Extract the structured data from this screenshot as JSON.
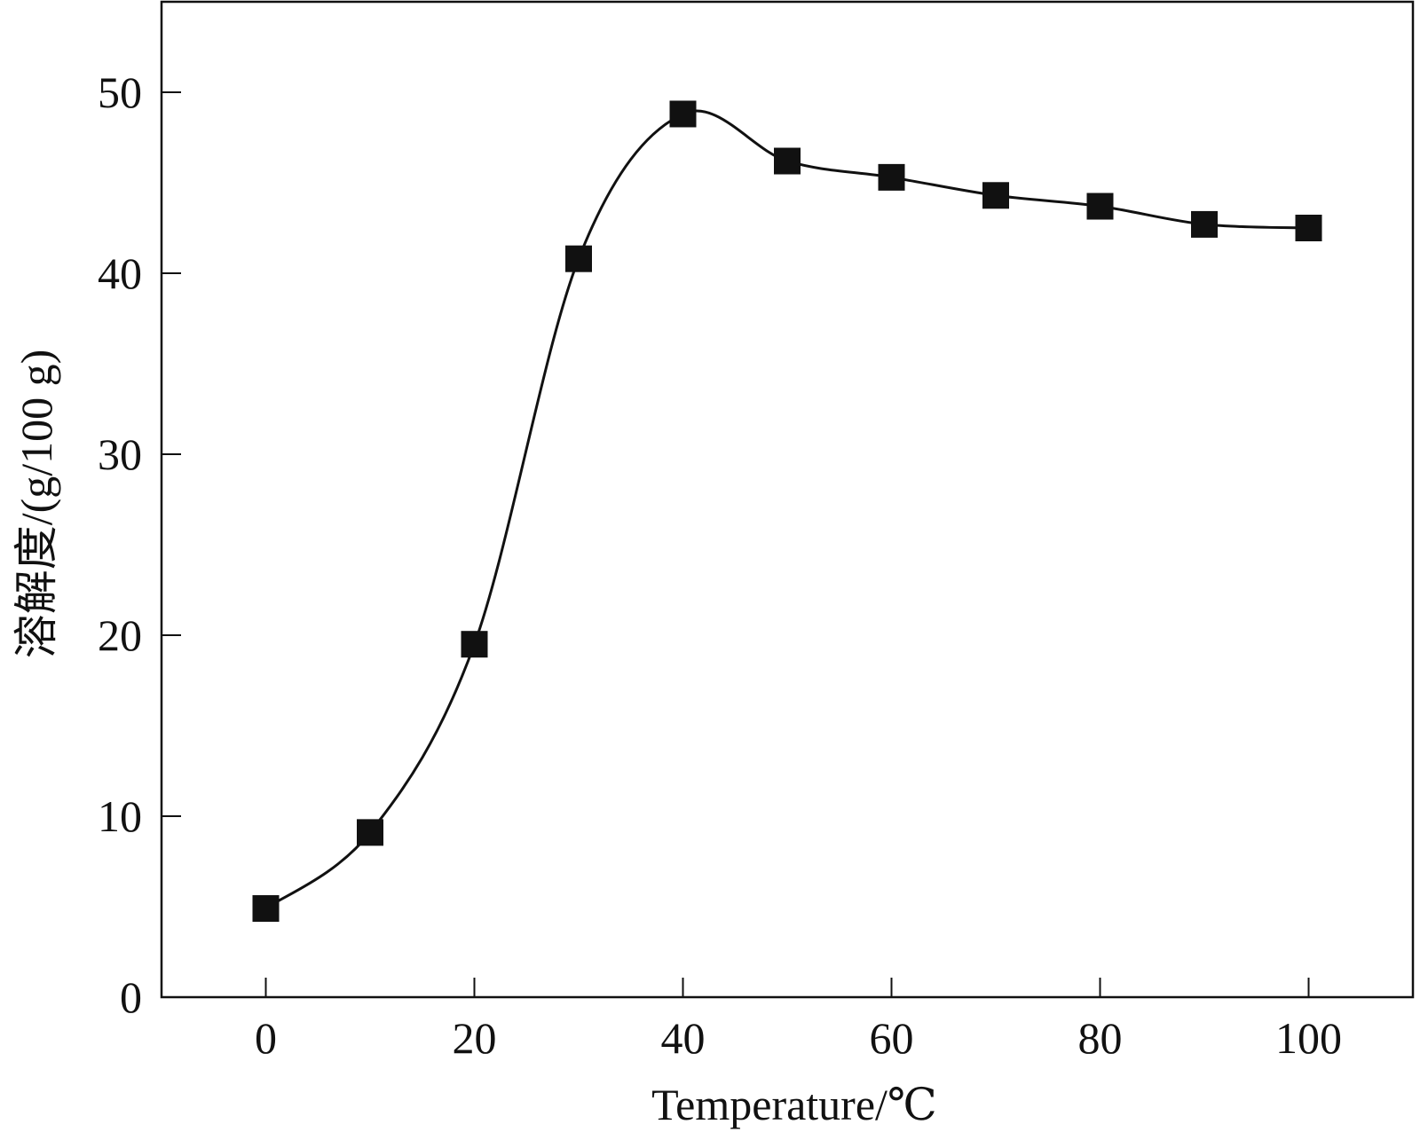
{
  "chart_data": {
    "type": "line",
    "title": "",
    "xlabel": "Temperature/℃",
    "ylabel": "溶解度/(g/100 g)",
    "xlim": [
      -10,
      110
    ],
    "ylim": [
      0,
      55
    ],
    "xticks": [
      0,
      20,
      40,
      60,
      80,
      100
    ],
    "yticks": [
      0,
      10,
      20,
      30,
      40,
      50
    ],
    "grid": false,
    "legend": "none",
    "marker": "square",
    "line_style": "smooth",
    "colors": {
      "line": "#111111",
      "marker": "#111111"
    },
    "series": [
      {
        "x": [
          0,
          10,
          20,
          30,
          40,
          50,
          60,
          70,
          80,
          90,
          100
        ],
        "y": [
          4.9,
          9.1,
          19.5,
          40.8,
          48.8,
          46.2,
          45.3,
          44.3,
          43.7,
          42.7,
          42.5
        ]
      }
    ]
  }
}
